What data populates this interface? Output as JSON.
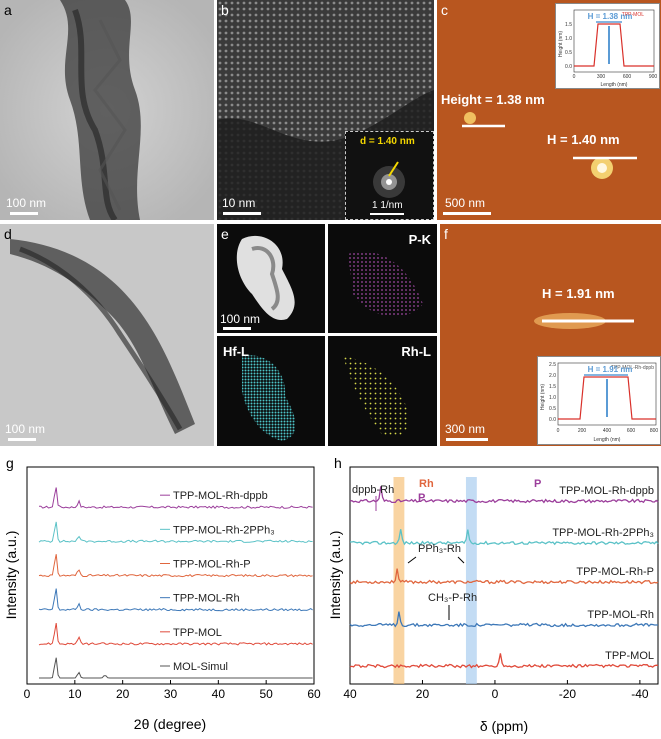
{
  "panels": {
    "a": {
      "label": "a",
      "scale": "100 nm"
    },
    "b": {
      "label": "b",
      "scale": "10 nm",
      "inset_d": "d = 1.40 nm",
      "inset_scale": "1 1/nm"
    },
    "c": {
      "label": "c",
      "scale": "500 nm",
      "height1": "Height = 1.38 nm",
      "height2": "H = 1.40 nm",
      "inset": {
        "legend": "TPP-MOL",
        "h": "H = 1.38 nm",
        "xlabel": "Length (nm)",
        "ylabel": "Height (nm)",
        "xticks": [
          "0",
          "300",
          "600",
          "900"
        ],
        "yticks": [
          "0.0",
          "0.5",
          "1.0",
          "1.5"
        ]
      }
    },
    "d": {
      "label": "d",
      "scale": "100 nm"
    },
    "e": {
      "label": "e",
      "scale": "100 nm",
      "maps": [
        "P-K",
        "Hf-L",
        "Rh-L"
      ]
    },
    "f": {
      "label": "f",
      "scale": "300 nm",
      "height": "H = 1.91 nm",
      "inset": {
        "legend": "TPP-MOL-Rh-dppb",
        "h": "H = 1.91 nm",
        "xlabel": "Length (nm)",
        "ylabel": "Height (nm)",
        "xticks": [
          "0",
          "200",
          "400",
          "600",
          "800"
        ],
        "yticks": [
          "0.0",
          "0.5",
          "1.0",
          "1.5",
          "2.0",
          "2.5"
        ]
      }
    },
    "g": {
      "label": "g",
      "xlabel": "2θ (degree)",
      "ylabel": "Intensity (a.u.)"
    },
    "h": {
      "label": "h",
      "xlabel": "δ  (ppm)",
      "ylabel": "Intensity (a.u.)",
      "annotations": {
        "dppb": "dppb-Rh",
        "rh": "Rh",
        "pph3": "PPh₃-Rh",
        "ch3": "CH₃-P-Rh",
        "p": "P"
      }
    }
  },
  "chart_data": [
    {
      "type": "line",
      "title": "",
      "xlabel": "2θ (degree)",
      "ylabel": "Intensity (a.u.)",
      "xlim": [
        0,
        60
      ],
      "xticks": [
        0,
        10,
        20,
        30,
        40,
        50,
        60
      ],
      "peaks_2theta": [
        6.0,
        10.8,
        16.3
      ],
      "series": [
        {
          "name": "TPP-MOL-Rh-dppb",
          "color": "#9b3e9b",
          "offset": 5
        },
        {
          "name": "TPP-MOL-Rh-2PPh₃",
          "color": "#5bc2c7",
          "offset": 4
        },
        {
          "name": "TPP-MOL-Rh-P",
          "color": "#e0663e",
          "offset": 3
        },
        {
          "name": "TPP-MOL-Rh",
          "color": "#3d78b8",
          "offset": 2
        },
        {
          "name": "TPP-MOL",
          "color": "#e04a3a",
          "offset": 1
        },
        {
          "name": "MOL-Simul",
          "color": "#555555",
          "offset": 0
        }
      ]
    },
    {
      "type": "line",
      "title": "",
      "xlabel": "δ  (ppm)",
      "ylabel": "Intensity (a.u.)",
      "xlim": [
        40,
        -45
      ],
      "xticks": [
        40,
        20,
        0,
        -20,
        -40
      ],
      "highlight_bands_ppm": [
        [
          28,
          25
        ],
        [
          8,
          5
        ]
      ],
      "series": [
        {
          "name": "TPP-MOL-Rh-dppb",
          "color": "#9b3e9b",
          "offset": 4,
          "peaks_ppm": [
            31.5
          ]
        },
        {
          "name": "TPP-MOL-Rh-2PPh₃",
          "color": "#5bc2c7",
          "offset": 3,
          "peaks_ppm": [
            26,
            7.5
          ]
        },
        {
          "name": "TPP-MOL-Rh-P",
          "color": "#e0663e",
          "offset": 2,
          "peaks_ppm": [
            27
          ]
        },
        {
          "name": "TPP-MOL-Rh",
          "color": "#3d78b8",
          "offset": 1,
          "peaks_ppm": [
            26.5
          ]
        },
        {
          "name": "TPP-MOL",
          "color": "#e04a3a",
          "offset": 0,
          "peaks_ppm": [
            -1.5
          ]
        }
      ]
    }
  ]
}
